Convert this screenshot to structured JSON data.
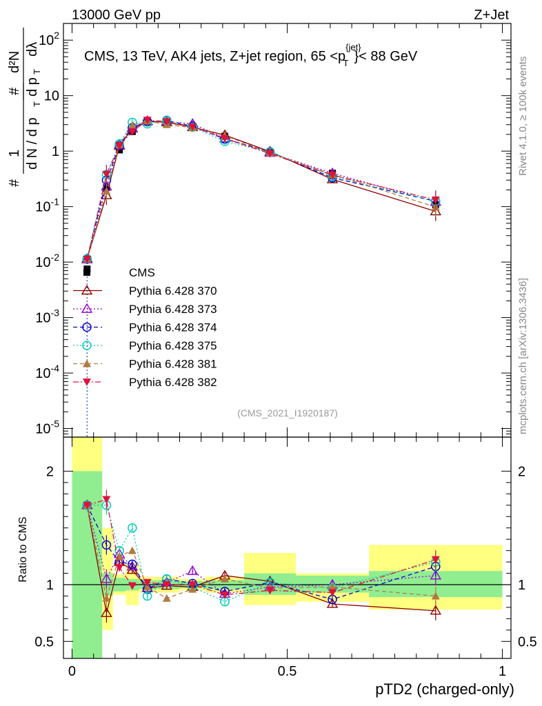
{
  "header": {
    "left": "13000 GeV pp",
    "right": "Z+Jet"
  },
  "title": "CMS, 13 TeV, AK4 jets, Z+jet region, 65 <p_T^{jet}< 88 GeV",
  "side_text": {
    "top": "Rivet 4.1.0, ≥ 100k events",
    "bottom": "mcplots.cern.ch [arXiv:1306.3436]"
  },
  "watermark": "(CMS_2021_I1920187)",
  "ylabel_parts": [
    "#",
    "1",
    "d N / d p",
    "T",
    "#",
    "d²N",
    "d p",
    "T",
    "dλ"
  ],
  "chart_data": [
    {
      "type": "line",
      "panel": "main",
      "title": "CMS, 13 TeV, AK4 jets, Z+jet region, 65 <p_T^{jet}< 88 GeV",
      "yscale": "log",
      "ylim": [
        7e-06,
        200
      ],
      "xlim": [
        -0.02,
        1.02
      ],
      "grid": false,
      "legend_position": "middle-left",
      "ytick_labels": [
        "10^-5",
        "10^-4",
        "10^-3",
        "10^-2",
        "10^-1",
        "1",
        "10",
        "10^2"
      ],
      "x": [
        0.035,
        0.08,
        0.11,
        0.14,
        0.175,
        0.22,
        0.28,
        0.355,
        0.46,
        0.605,
        0.845
      ],
      "series": [
        {
          "name": "CMS",
          "color": "#000000",
          "marker": "square",
          "line": "none",
          "values": [
            0.0075,
            0.22,
            1.05,
            2.25,
            3.6,
            3.35,
            2.75,
            1.85,
            0.95,
            0.4,
            0.108
          ]
        },
        {
          "name": "Pythia 6.428 370",
          "color": "#8b0000",
          "marker": "triangle-open",
          "line": "solid",
          "values": [
            0.0115,
            0.16,
            1.25,
            2.55,
            3.45,
            3.3,
            2.7,
            1.95,
            0.98,
            0.31,
            0.082
          ]
        },
        {
          "name": "Pythia 6.428 373",
          "color": "#9400d3",
          "marker": "triangle-open",
          "line": "dotted",
          "values": [
            0.0112,
            0.23,
            1.3,
            2.6,
            3.5,
            3.4,
            3.1,
            1.7,
            0.93,
            0.4,
            0.122
          ]
        },
        {
          "name": "Pythia 6.428 374",
          "color": "#0000cd",
          "marker": "circle-open",
          "line": "dashed",
          "values": [
            0.0113,
            0.3,
            1.25,
            2.65,
            3.4,
            3.55,
            2.8,
            1.65,
            0.97,
            0.33,
            0.125
          ]
        },
        {
          "name": "Pythia 6.428 375",
          "color": "#00cdb4",
          "marker": "circle-open",
          "line": "dotted",
          "values": [
            0.0115,
            0.38,
            1.35,
            3.3,
            3.1,
            3.6,
            2.7,
            1.5,
            0.96,
            0.35,
            0.125
          ]
        },
        {
          "name": "Pythia 6.428 381",
          "color": "#b07a40",
          "marker": "triangle-filled",
          "line": "dashed",
          "values": [
            0.0112,
            0.19,
            1.3,
            2.9,
            3.5,
            3.0,
            2.65,
            1.9,
            0.93,
            0.38,
            0.098
          ]
        },
        {
          "name": "Pythia 6.428 382",
          "color": "#dc143c",
          "marker": "triangle-down-filled",
          "line": "dashdot",
          "values": [
            0.0112,
            0.38,
            1.25,
            2.25,
            3.6,
            3.4,
            2.75,
            1.7,
            0.9,
            0.37,
            0.132
          ]
        }
      ]
    },
    {
      "type": "line",
      "panel": "ratio",
      "ylabel": "Ratio to CMS",
      "ylim": [
        0.35,
        2.3
      ],
      "xlim": [
        -0.02,
        1.02
      ],
      "xlabel": "pTD2 (charged-only)",
      "ytick_labels": [
        "0.5",
        "1",
        "2"
      ],
      "xtick_labels": [
        "0",
        "0.5",
        "1"
      ],
      "uncertainty_bands": {
        "bins": [
          [
            0.0,
            0.07
          ],
          [
            0.07,
            0.095
          ],
          [
            0.095,
            0.125
          ],
          [
            0.125,
            0.155
          ],
          [
            0.155,
            0.195
          ],
          [
            0.195,
            0.25
          ],
          [
            0.25,
            0.31
          ],
          [
            0.31,
            0.4
          ],
          [
            0.4,
            0.52
          ],
          [
            0.52,
            0.69
          ],
          [
            0.69,
            1.0
          ]
        ],
        "stat_color": "#90ee90",
        "stat_lo": [
          0.35,
          0.9,
          0.94,
          0.95,
          0.96,
          0.96,
          0.97,
          0.96,
          0.91,
          0.93,
          0.89
        ],
        "stat_hi": [
          2.0,
          1.1,
          1.06,
          1.05,
          1.04,
          1.04,
          1.03,
          1.04,
          1.1,
          1.08,
          1.12
        ],
        "syst_color": "#ffff80",
        "syst_lo": [
          0.35,
          0.6,
          0.91,
          0.82,
          0.93,
          0.93,
          0.95,
          0.93,
          0.82,
          0.85,
          0.78
        ],
        "syst_hi": [
          2.3,
          1.5,
          1.09,
          1.18,
          1.07,
          1.07,
          1.05,
          1.07,
          1.28,
          1.1,
          1.35
        ]
      },
      "x": [
        0.035,
        0.08,
        0.11,
        0.14,
        0.175,
        0.22,
        0.28,
        0.355,
        0.46,
        0.605,
        0.845
      ],
      "series": [
        {
          "name": "Pythia 6.428 370",
          "color": "#8b0000",
          "marker": "triangle-open",
          "line": "solid",
          "values": [
            1.7,
            0.75,
            1.2,
            1.13,
            0.97,
            0.99,
            0.98,
            1.08,
            1.03,
            0.83,
            0.77
          ]
        },
        {
          "name": "Pythia 6.428 373",
          "color": "#9400d3",
          "marker": "triangle-open",
          "line": "dotted",
          "values": [
            1.7,
            1.05,
            1.27,
            1.16,
            0.97,
            1.02,
            1.12,
            0.92,
            0.98,
            1.0,
            1.08
          ]
        },
        {
          "name": "Pythia 6.428 374",
          "color": "#0000cd",
          "marker": "circle-open",
          "line": "dashed",
          "values": [
            1.7,
            1.35,
            1.2,
            1.18,
            0.96,
            1.05,
            1.01,
            0.94,
            1.02,
            0.87,
            1.16
          ]
        },
        {
          "name": "Pythia 6.428 375",
          "color": "#00cdb4",
          "marker": "circle-open",
          "line": "dotted",
          "values": [
            1.7,
            1.7,
            1.3,
            1.5,
            0.9,
            1.05,
            0.98,
            0.85,
            1.02,
            0.97,
            1.2
          ]
        },
        {
          "name": "Pythia 6.428 381",
          "color": "#b07a40",
          "marker": "triangle-filled",
          "line": "dashed",
          "values": [
            1.7,
            0.88,
            1.25,
            1.3,
            0.98,
            0.88,
            0.96,
            1.05,
            0.97,
            0.98,
            0.9
          ]
        },
        {
          "name": "Pythia 6.428 382",
          "color": "#dc143c",
          "marker": "triangle-down-filled",
          "line": "dashdot",
          "values": [
            1.7,
            1.75,
            1.15,
            0.99,
            1.02,
            1.0,
            1.0,
            0.91,
            0.95,
            0.93,
            1.22
          ]
        }
      ]
    }
  ]
}
